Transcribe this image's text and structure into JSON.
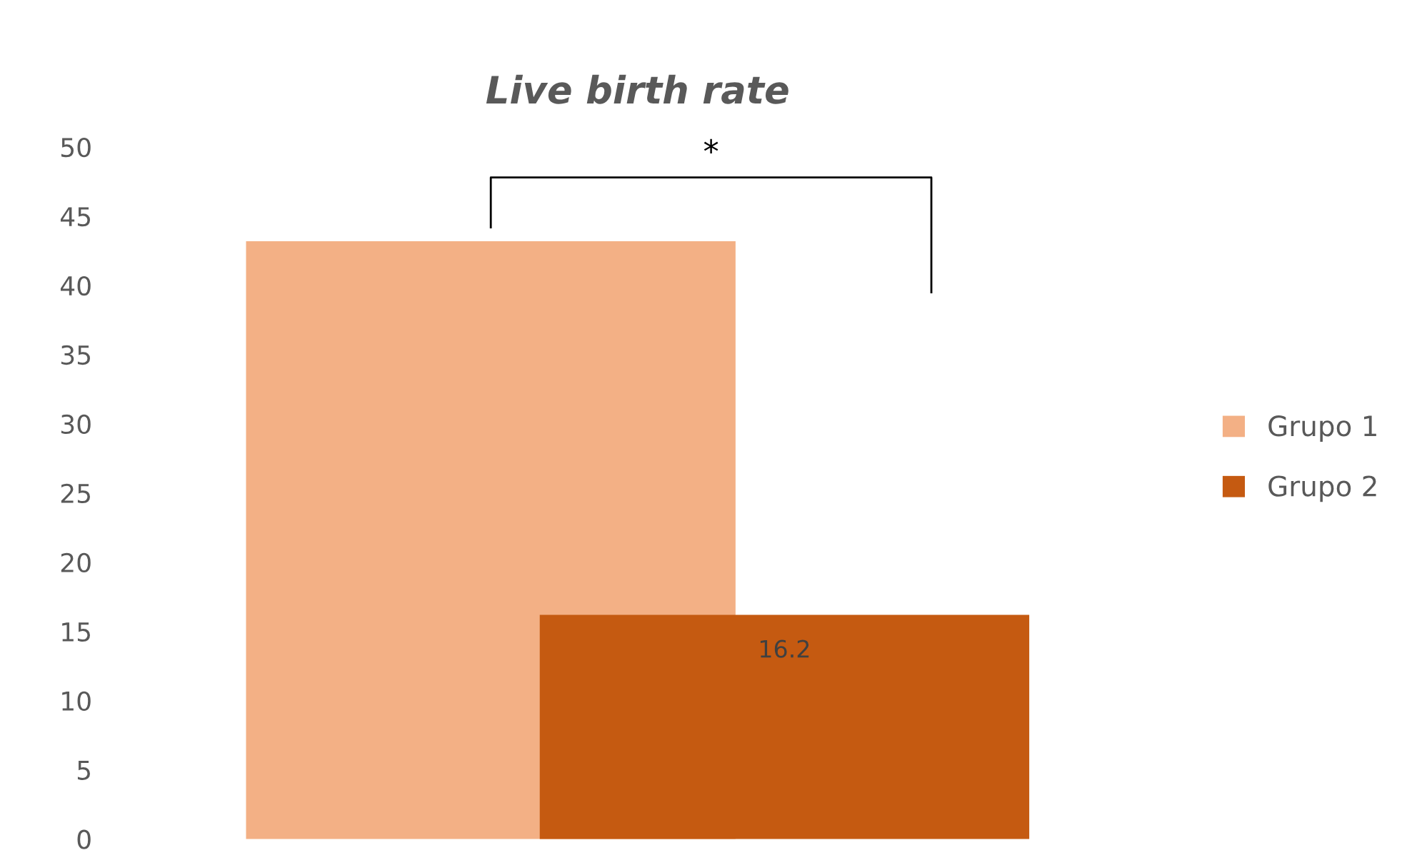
{
  "chart_data": {
    "type": "bar",
    "title": "Live birth rate",
    "categories": [
      null
    ],
    "series": [
      {
        "name": "Grupo 1",
        "color": "#f3b085",
        "values": [
          43.2
        ],
        "value_labels": [
          null
        ]
      },
      {
        "name": "Grupo 2",
        "color": "#c55a11",
        "values": [
          16.2
        ],
        "value_labels": [
          "16.2"
        ]
      }
    ],
    "ylim": [
      0,
      50
    ],
    "yticks": [
      0,
      5,
      10,
      15,
      20,
      25,
      30,
      35,
      40,
      45,
      50
    ],
    "annotations": [
      "*"
    ],
    "grid": false,
    "legend": "right"
  }
}
